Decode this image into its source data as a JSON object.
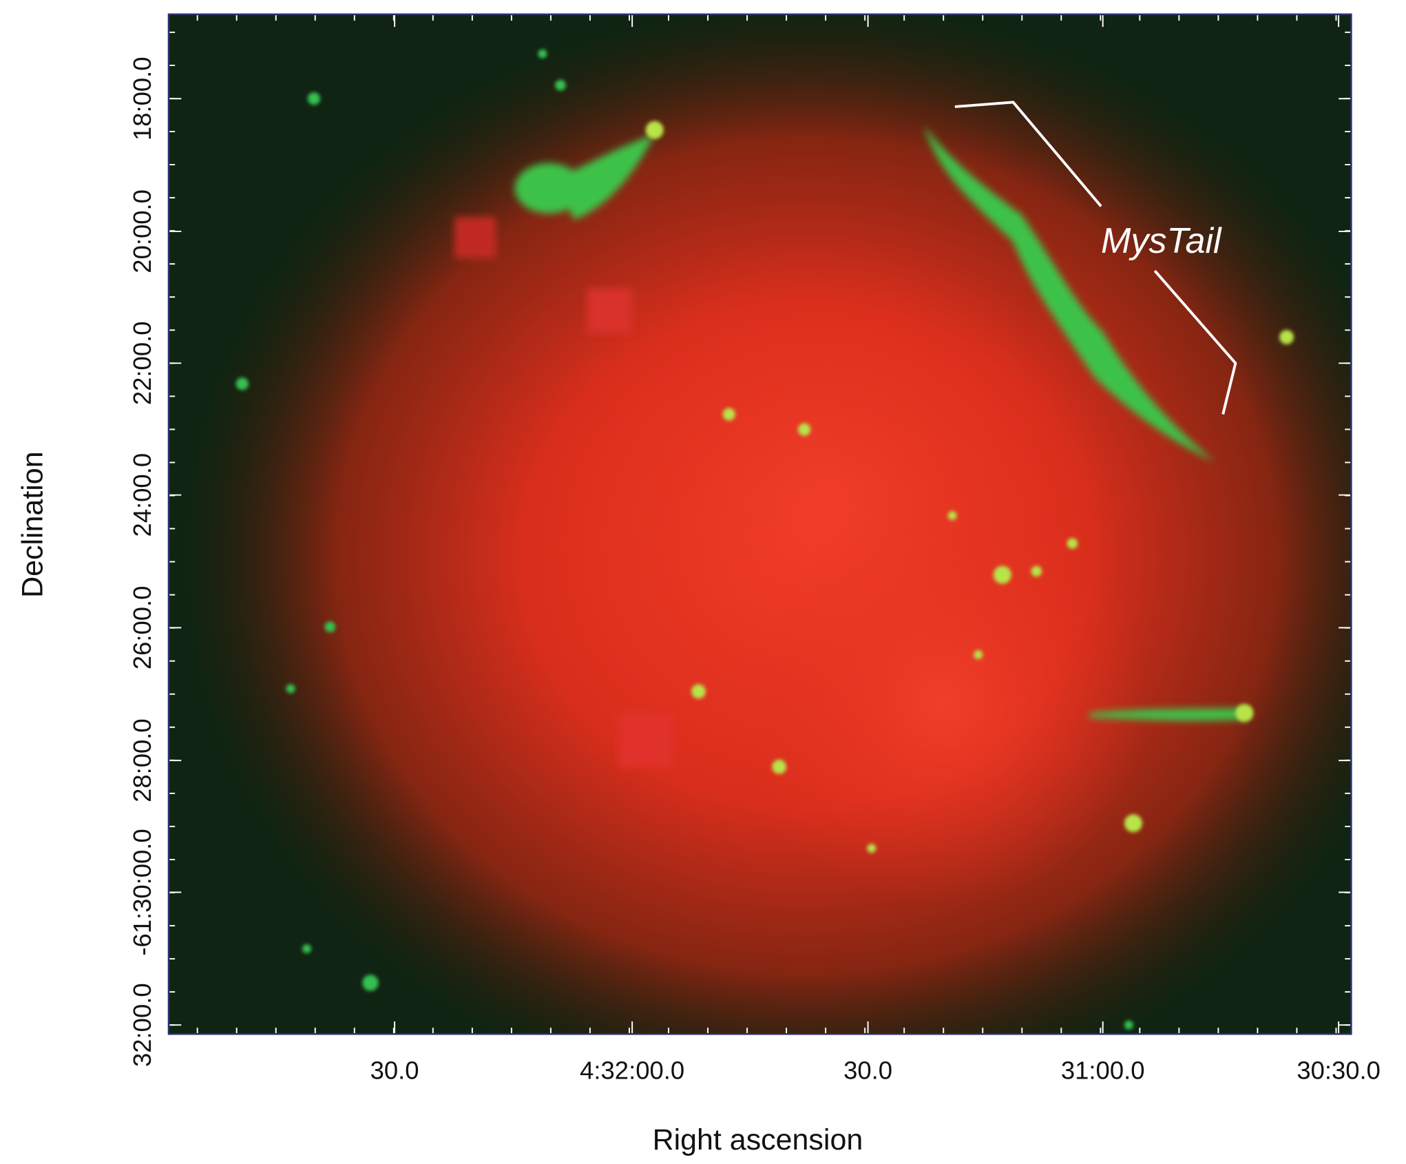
{
  "figure": {
    "x_axis": {
      "label": "Right ascension",
      "ticks": [
        "30.0",
        "4:32:00.0",
        "30.0",
        "31:00.0",
        "30:30.0"
      ]
    },
    "y_axis": {
      "label": "Declination",
      "ticks": [
        "18:00.0",
        "20:00.0",
        "22:00.0",
        "24:00.0",
        "26:00.0",
        "28:00.0",
        "-61:30:00.0",
        "32:00.0"
      ]
    },
    "annotation": "MysTail"
  }
}
